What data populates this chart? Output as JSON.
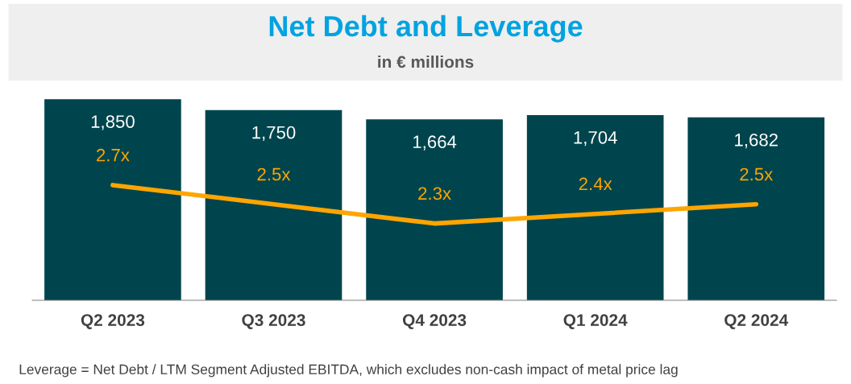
{
  "chart_data": {
    "type": "bar",
    "title": "Net Debt and Leverage",
    "subtitle": "in € millions",
    "categories": [
      "Q2 2023",
      "Q3 2023",
      "Q4 2023",
      "Q1 2024",
      "Q2 2024"
    ],
    "series": [
      {
        "color": "#00454d",
        "values": [
          1850,
          1750,
          1664,
          1704,
          1682
        ],
        "value_labels": [
          "1,850",
          "1,750",
          "1,664",
          "1,704",
          "1,682"
        ]
      },
      {
        "type": "line",
        "axis": "y2",
        "color": "#ffa500",
        "values": [
          2.7,
          2.5,
          2.3,
          2.4,
          2.5
        ],
        "value_labels": [
          "2.7x",
          "2.5x",
          "2.3x",
          "2.4x",
          "2.5x"
        ]
      }
    ],
    "tick_labels": "x",
    "data_labels": true,
    "grid": false,
    "legend": false,
    "marker": "none",
    "line_style": "solid",
    "annotations": [
      "Leverage = Net Debt / LTM Segment Adjusted EBITDA, which excludes non-cash impact of metal price lag"
    ]
  }
}
